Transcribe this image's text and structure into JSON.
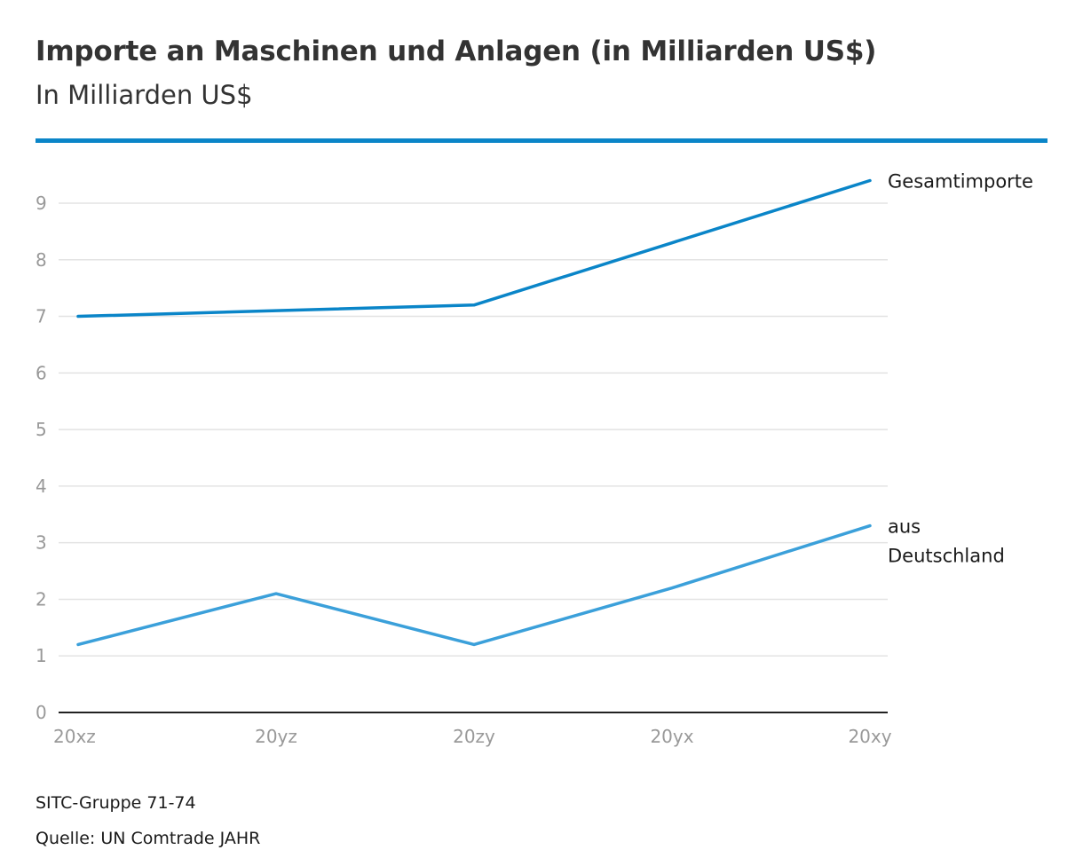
{
  "chart_data": {
    "type": "line",
    "title": "Importe an Maschinen und Anlagen (in Milliarden US$)",
    "subtitle": "In Milliarden US$",
    "xlabel": "",
    "ylabel": "",
    "categories": [
      "20xz",
      "20yz",
      "20zy",
      "20yx",
      "20xy"
    ],
    "ylim": [
      0,
      9
    ],
    "yticks": [
      "0",
      "1",
      "2",
      "3",
      "4",
      "5",
      "6",
      "7",
      "8",
      "9"
    ],
    "grid": true,
    "series": [
      {
        "name": "Gesamtimporte",
        "label_lines": [
          "Gesamtimporte"
        ],
        "color": "#0a85c8",
        "values": [
          7.0,
          7.1,
          7.2,
          8.3,
          9.4
        ]
      },
      {
        "name": "aus Deutschland",
        "label_lines": [
          "aus",
          "Deutschland"
        ],
        "color": "#3ba0da",
        "values": [
          1.2,
          2.1,
          1.2,
          2.2,
          3.3
        ]
      }
    ],
    "footnote": "SITC-Gruppe 71-74",
    "source": "Quelle: UN Comtrade JAHR"
  },
  "colors": {
    "accent": "#0a85c8",
    "text": "#333333",
    "tick_text": "#999999",
    "grid": "#e3e3e3",
    "axis": "#222222"
  }
}
